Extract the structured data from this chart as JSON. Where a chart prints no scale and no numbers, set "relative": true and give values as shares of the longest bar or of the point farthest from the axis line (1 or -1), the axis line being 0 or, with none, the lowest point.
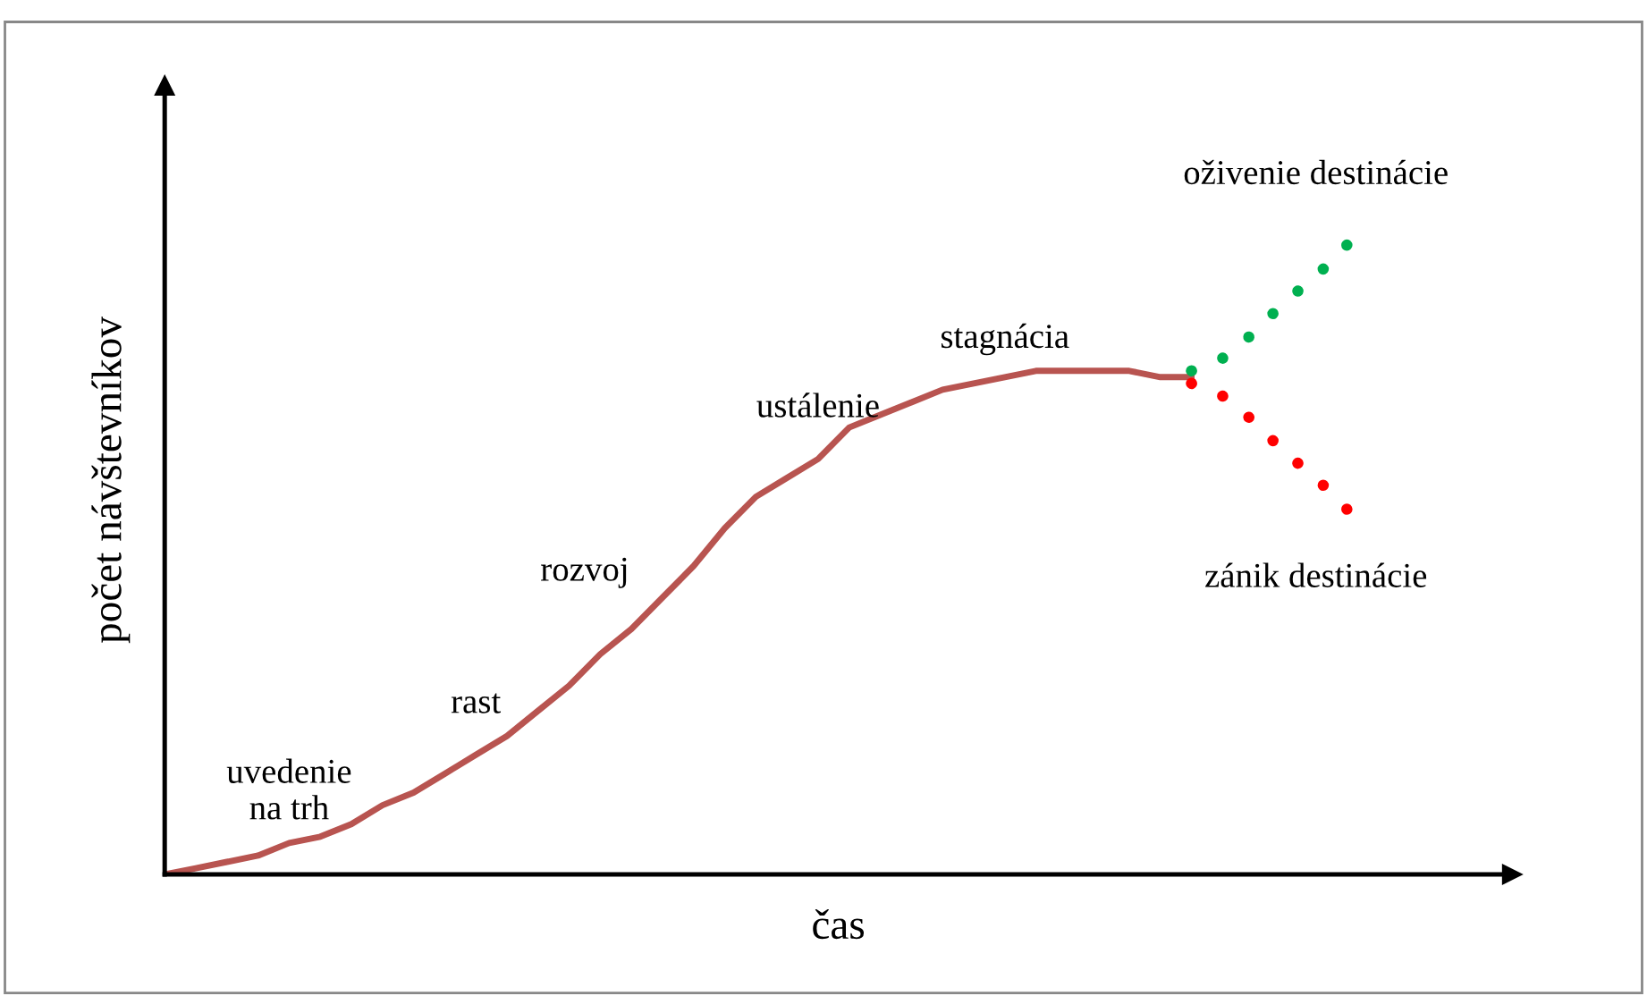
{
  "chart_data": {
    "type": "line",
    "relative": true,
    "xlabel": "čas",
    "ylabel": "počet návštevníkov",
    "tick_labels": false,
    "legend": false,
    "categories": [
      null,
      null,
      null,
      null,
      null,
      null,
      null,
      null,
      null,
      null,
      null,
      null,
      null,
      null,
      null,
      null,
      null,
      null,
      null,
      null,
      null,
      null,
      null,
      null,
      null,
      null,
      null,
      null,
      null,
      null,
      null,
      null,
      null,
      null,
      null,
      null,
      null,
      null,
      null
    ],
    "series": [
      {
        "color": "#b85450",
        "line_style": "solid",
        "values": [
          0,
          0.01,
          0.02,
          0.03,
          0.05,
          0.06,
          0.08,
          0.11,
          0.13,
          0.16,
          0.19,
          0.22,
          0.26,
          0.3,
          0.35,
          0.39,
          0.44,
          0.49,
          0.55,
          0.6,
          0.63,
          0.66,
          0.71,
          0.73,
          0.75,
          0.77,
          0.78,
          0.79,
          0.8,
          0.8,
          0.8,
          0.8,
          0.79,
          0.79,
          null,
          null,
          null,
          null,
          null
        ]
      },
      {
        "color": "#00b050",
        "line_style": "dotted",
        "values": [
          null,
          null,
          null,
          null,
          null,
          null,
          null,
          null,
          null,
          null,
          null,
          null,
          null,
          null,
          null,
          null,
          null,
          null,
          null,
          null,
          null,
          null,
          null,
          null,
          null,
          null,
          null,
          null,
          null,
          null,
          null,
          null,
          null,
          0.8,
          0.82,
          0.86,
          0.91,
          0.95,
          1.0
        ]
      },
      {
        "color": "#ff0000",
        "line_style": "dotted",
        "values": [
          null,
          null,
          null,
          null,
          null,
          null,
          null,
          null,
          null,
          null,
          null,
          null,
          null,
          null,
          null,
          null,
          null,
          null,
          null,
          null,
          null,
          null,
          null,
          null,
          null,
          null,
          null,
          null,
          null,
          null,
          null,
          null,
          null,
          0.78,
          0.76,
          0.72,
          0.67,
          0.63,
          0.58
        ]
      }
    ],
    "annotations": [
      "uvedenie\nna trh",
      "rast",
      "rozvoj",
      "ustálenie",
      "stagnácia",
      "oživenie destinácie",
      "zánik destinácie"
    ]
  }
}
